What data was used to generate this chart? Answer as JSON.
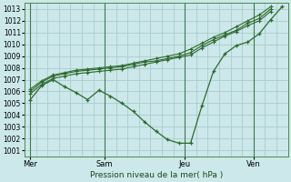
{
  "xlabel": "Pression niveau de la mer( hPa )",
  "bg_color": "#cce8ea",
  "grid_color": "#aacccc",
  "line_color": "#2d6a2d",
  "ylim": [
    1000.5,
    1013.5
  ],
  "yticks": [
    1001,
    1002,
    1003,
    1004,
    1005,
    1006,
    1007,
    1008,
    1009,
    1010,
    1011,
    1012,
    1013
  ],
  "xtick_labels": [
    "Mer",
    "Sam",
    "Jeu",
    "Ven"
  ],
  "xtick_positions": [
    0.5,
    7,
    14,
    20
  ],
  "xlim": [
    0,
    23
  ],
  "line1_x": [
    0.5,
    1.5,
    2.5,
    3.5,
    4.5,
    5.5,
    6.5,
    7.5,
    8.5,
    9.5,
    10.5,
    11.5,
    12.5,
    13.5,
    14.5,
    15.5,
    16.5,
    17.5,
    18.5,
    19.5,
    20.5,
    21.5,
    22.5
  ],
  "line1_y": [
    1005.3,
    1006.5,
    1007.0,
    1006.4,
    1005.9,
    1005.3,
    1006.1,
    1005.6,
    1005.0,
    1004.3,
    1003.4,
    1002.6,
    1001.9,
    1001.6,
    1001.6,
    1004.8,
    1007.7,
    1009.2,
    1009.9,
    1010.2,
    1010.9,
    1012.1,
    1013.2
  ],
  "line2_x": [
    0.5,
    1.5,
    2.5,
    3.5,
    4.5,
    5.5,
    6.5,
    7.5,
    8.5,
    9.5,
    10.5,
    11.5,
    12.5,
    13.5,
    14.5,
    15.5,
    16.5,
    17.5,
    18.5,
    19.5,
    20.5,
    21.5
  ],
  "line2_y": [
    1006.0,
    1006.8,
    1007.3,
    1007.5,
    1007.7,
    1007.8,
    1007.9,
    1008.0,
    1008.1,
    1008.3,
    1008.5,
    1008.6,
    1008.8,
    1009.0,
    1009.3,
    1009.9,
    1010.4,
    1010.8,
    1011.2,
    1011.8,
    1012.2,
    1013.0
  ],
  "line3_x": [
    0.5,
    1.5,
    2.5,
    3.5,
    4.5,
    5.5,
    6.5,
    7.5,
    8.5,
    9.5,
    10.5,
    11.5,
    12.5,
    13.5,
    14.5,
    15.5,
    16.5,
    17.5,
    18.5,
    19.5,
    20.5,
    21.5
  ],
  "line3_y": [
    1006.2,
    1006.9,
    1007.4,
    1007.6,
    1007.8,
    1007.9,
    1008.0,
    1008.1,
    1008.2,
    1008.4,
    1008.6,
    1008.8,
    1009.0,
    1009.2,
    1009.6,
    1010.1,
    1010.6,
    1011.0,
    1011.5,
    1012.0,
    1012.5,
    1013.2
  ],
  "line4_x": [
    0.5,
    1.5,
    2.5,
    3.5,
    4.5,
    5.5,
    6.5,
    7.5,
    8.5,
    9.5,
    10.5,
    11.5,
    12.5,
    13.5,
    14.5,
    15.5,
    16.5,
    17.5,
    18.5,
    19.5,
    20.5,
    21.5
  ],
  "line4_y": [
    1005.8,
    1006.6,
    1007.1,
    1007.3,
    1007.5,
    1007.6,
    1007.7,
    1007.8,
    1007.9,
    1008.1,
    1008.3,
    1008.5,
    1008.7,
    1008.9,
    1009.1,
    1009.7,
    1010.2,
    1010.7,
    1011.1,
    1011.6,
    1012.0,
    1012.8
  ]
}
